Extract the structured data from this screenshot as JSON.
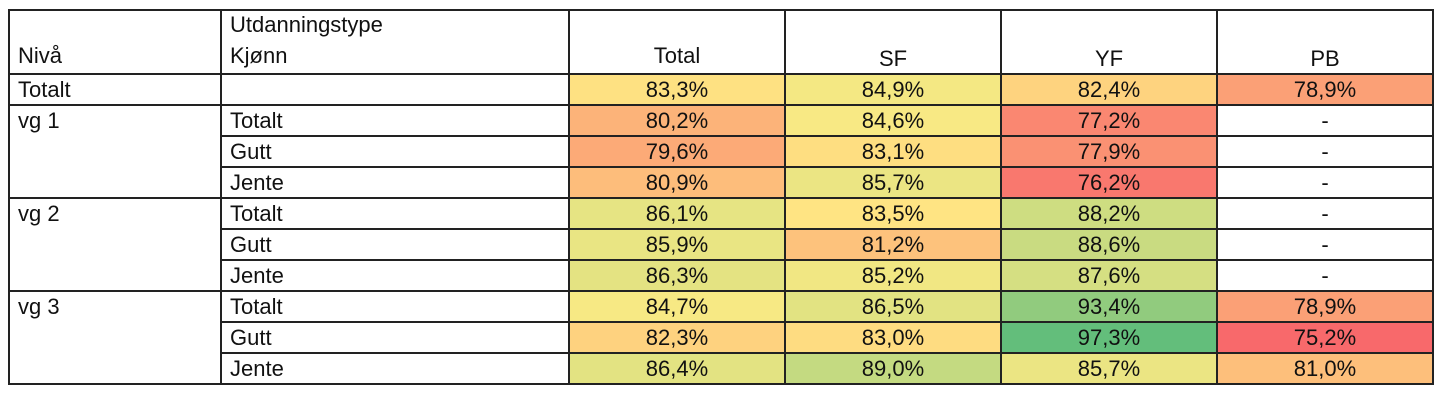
{
  "header": {
    "level_label": "Nivå",
    "type_label": "Utdanningstype",
    "gender_label": "Kjønn",
    "columns": [
      "Total",
      "SF",
      "YF",
      "PB"
    ]
  },
  "colors": {
    "scale_low": "#f8696b",
    "scale_mid": "#ffeb84",
    "scale_high": "#63be7b",
    "empty": "#ffffff"
  },
  "rows": [
    {
      "level": "Totalt",
      "gender": "",
      "values": [
        "83,3%",
        "84,9%",
        "82,4%",
        "78,9%"
      ],
      "num": [
        83.3,
        84.9,
        82.4,
        78.9
      ]
    },
    {
      "level": "vg 1",
      "gender": "Totalt",
      "values": [
        "80,2%",
        "84,6%",
        "77,2%",
        "-"
      ],
      "num": [
        80.2,
        84.6,
        77.2,
        null
      ]
    },
    {
      "level": "",
      "gender": "Gutt",
      "values": [
        "79,6%",
        "83,1%",
        "77,9%",
        "-"
      ],
      "num": [
        79.6,
        83.1,
        77.9,
        null
      ]
    },
    {
      "level": "",
      "gender": "Jente",
      "values": [
        "80,9%",
        "85,7%",
        "76,2%",
        "-"
      ],
      "num": [
        80.9,
        85.7,
        76.2,
        null
      ]
    },
    {
      "level": "vg 2",
      "gender": "Totalt",
      "values": [
        "86,1%",
        "83,5%",
        "88,2%",
        "-"
      ],
      "num": [
        86.1,
        83.5,
        88.2,
        null
      ]
    },
    {
      "level": "",
      "gender": "Gutt",
      "values": [
        "85,9%",
        "81,2%",
        "88,6%",
        "-"
      ],
      "num": [
        85.9,
        81.2,
        88.6,
        null
      ]
    },
    {
      "level": "",
      "gender": "Jente",
      "values": [
        "86,3%",
        "85,2%",
        "87,6%",
        "-"
      ],
      "num": [
        86.3,
        85.2,
        87.6,
        null
      ]
    },
    {
      "level": "vg 3",
      "gender": "Totalt",
      "values": [
        "84,7%",
        "86,5%",
        "93,4%",
        "78,9%"
      ],
      "num": [
        84.7,
        86.5,
        93.4,
        78.9
      ]
    },
    {
      "level": "",
      "gender": "Gutt",
      "values": [
        "82,3%",
        "83,0%",
        "97,3%",
        "75,2%"
      ],
      "num": [
        82.3,
        83.0,
        97.3,
        75.2
      ]
    },
    {
      "level": "",
      "gender": "Jente",
      "values": [
        "86,4%",
        "89,0%",
        "85,7%",
        "81,0%"
      ],
      "num": [
        86.4,
        89.0,
        85.7,
        81.0
      ]
    }
  ]
}
